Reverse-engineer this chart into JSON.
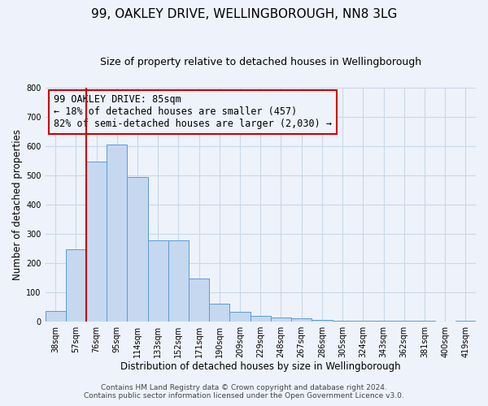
{
  "title": "99, OAKLEY DRIVE, WELLINGBOROUGH, NN8 3LG",
  "subtitle": "Size of property relative to detached houses in Wellingborough",
  "xlabel": "Distribution of detached houses by size in Wellingborough",
  "ylabel": "Number of detached properties",
  "bar_labels": [
    "38sqm",
    "57sqm",
    "76sqm",
    "95sqm",
    "114sqm",
    "133sqm",
    "152sqm",
    "171sqm",
    "190sqm",
    "209sqm",
    "229sqm",
    "248sqm",
    "267sqm",
    "286sqm",
    "305sqm",
    "324sqm",
    "343sqm",
    "362sqm",
    "381sqm",
    "400sqm",
    "419sqm"
  ],
  "bar_heights": [
    35,
    248,
    548,
    605,
    493,
    277,
    277,
    147,
    62,
    33,
    20,
    13,
    10,
    5,
    4,
    3,
    3,
    2,
    2,
    1,
    3
  ],
  "bar_color": "#c5d8f0",
  "bar_edge_color": "#5b9bd5",
  "vline_x_index": 2,
  "vline_color": "#cc0000",
  "annotation_box_text": "99 OAKLEY DRIVE: 85sqm\n← 18% of detached houses are smaller (457)\n82% of semi-detached houses are larger (2,030) →",
  "annotation_box_color": "#cc0000",
  "ylim": [
    0,
    800
  ],
  "yticks": [
    0,
    100,
    200,
    300,
    400,
    500,
    600,
    700,
    800
  ],
  "grid_color": "#c8d8e8",
  "bg_color": "#eef2fa",
  "footer_line1": "Contains HM Land Registry data © Crown copyright and database right 2024.",
  "footer_line2": "Contains public sector information licensed under the Open Government Licence v3.0.",
  "title_fontsize": 11,
  "subtitle_fontsize": 9,
  "axis_label_fontsize": 8.5,
  "tick_fontsize": 7,
  "annotation_fontsize": 8.5,
  "footer_fontsize": 6.5
}
